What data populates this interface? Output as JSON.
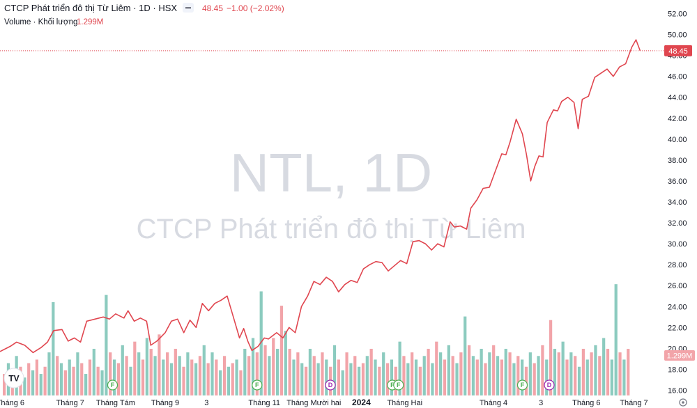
{
  "header": {
    "title": "CTCP Phát triển đô thị Từ Liêm · 1D · HSX",
    "price": "48.45",
    "change": "−1.00 (−2.02%)",
    "volume_label": "Volume · Khối lượng",
    "volume_value": "1.299M"
  },
  "watermark": {
    "symbol": "NTL, 1D",
    "name": "CTCP Phát triển đô thị Từ Liêm"
  },
  "last_price_label": "48.45",
  "last_volume_label": "1.299M",
  "logo_text": "TV",
  "colors": {
    "line": "#e0464f",
    "up_volume": "#8ccbbf",
    "down_volume": "#f2a4a9",
    "dividend": "#9c27b0",
    "financial": "#4caf50"
  },
  "chart_data": {
    "type": "line",
    "y_ticks": [
      "16.00",
      "18.00",
      "20.00",
      "22.00",
      "24.00",
      "26.00",
      "28.00",
      "30.00",
      "32.00",
      "34.00",
      "36.00",
      "38.00",
      "40.00",
      "42.00",
      "44.00",
      "46.00",
      "48.00",
      "50.00",
      "52.00"
    ],
    "ylim": [
      15.5,
      52.5
    ],
    "x_labels": [
      "Tháng 6",
      "Tháng 7",
      "Tháng Tám",
      "Tháng 9",
      "3",
      "Tháng 11",
      "Tháng Mười hai",
      "2024",
      "Tháng Hai",
      "Tháng 4",
      "3",
      "Tháng 6",
      "Tháng 7"
    ],
    "x_label_positions": [
      0.5,
      3.4,
      5.6,
      8.0,
      10.0,
      12.8,
      15.2,
      17.5,
      19.6,
      23.9,
      26.2,
      28.4,
      30.7
    ],
    "x_label_bold": [
      false,
      false,
      false,
      false,
      false,
      false,
      false,
      true,
      false,
      false,
      false,
      false,
      false
    ],
    "x_range": [
      0,
      32
    ],
    "price_points": [
      [
        0.0,
        19.7
      ],
      [
        0.5,
        20.2
      ],
      [
        0.8,
        20.6
      ],
      [
        1.2,
        20.3
      ],
      [
        1.6,
        19.6
      ],
      [
        2.0,
        20.1
      ],
      [
        2.3,
        20.6
      ],
      [
        2.6,
        21.7
      ],
      [
        3.0,
        21.8
      ],
      [
        3.3,
        20.7
      ],
      [
        3.6,
        21.0
      ],
      [
        3.9,
        20.6
      ],
      [
        4.2,
        22.6
      ],
      [
        4.6,
        22.8
      ],
      [
        5.0,
        23.0
      ],
      [
        5.3,
        22.8
      ],
      [
        5.6,
        23.3
      ],
      [
        6.0,
        22.9
      ],
      [
        6.2,
        23.6
      ],
      [
        6.5,
        22.6
      ],
      [
        6.8,
        22.9
      ],
      [
        7.1,
        22.6
      ],
      [
        7.3,
        20.3
      ],
      [
        7.6,
        20.7
      ],
      [
        8.0,
        21.5
      ],
      [
        8.3,
        22.6
      ],
      [
        8.6,
        22.8
      ],
      [
        8.9,
        21.5
      ],
      [
        9.2,
        22.7
      ],
      [
        9.5,
        22.0
      ],
      [
        9.8,
        24.3
      ],
      [
        10.1,
        23.6
      ],
      [
        10.4,
        24.3
      ],
      [
        10.7,
        24.6
      ],
      [
        11.0,
        25.0
      ],
      [
        11.3,
        23.0
      ],
      [
        11.6,
        21.0
      ],
      [
        11.8,
        21.9
      ],
      [
        12.0,
        20.7
      ],
      [
        12.2,
        19.8
      ],
      [
        12.5,
        20.2
      ],
      [
        12.8,
        21.0
      ],
      [
        13.0,
        20.9
      ],
      [
        13.4,
        21.5
      ],
      [
        13.7,
        21.0
      ],
      [
        14.0,
        22.0
      ],
      [
        14.3,
        21.5
      ],
      [
        14.6,
        24.0
      ],
      [
        14.9,
        25.0
      ],
      [
        15.2,
        26.4
      ],
      [
        15.5,
        26.1
      ],
      [
        15.8,
        26.8
      ],
      [
        16.1,
        26.4
      ],
      [
        16.4,
        25.4
      ],
      [
        16.7,
        26.1
      ],
      [
        17.0,
        26.5
      ],
      [
        17.3,
        26.3
      ],
      [
        17.6,
        27.6
      ],
      [
        17.9,
        28.0
      ],
      [
        18.2,
        28.3
      ],
      [
        18.5,
        28.2
      ],
      [
        18.8,
        27.4
      ],
      [
        19.1,
        27.9
      ],
      [
        19.4,
        28.4
      ],
      [
        19.7,
        28.1
      ],
      [
        20.0,
        30.2
      ],
      [
        20.3,
        30.3
      ],
      [
        20.6,
        30.0
      ],
      [
        20.9,
        29.4
      ],
      [
        21.2,
        30.0
      ],
      [
        21.5,
        29.7
      ],
      [
        21.8,
        32.1
      ],
      [
        22.0,
        31.6
      ],
      [
        22.3,
        31.7
      ],
      [
        22.6,
        31.4
      ],
      [
        22.8,
        33.4
      ],
      [
        23.1,
        34.2
      ],
      [
        23.4,
        35.3
      ],
      [
        23.7,
        35.4
      ],
      [
        24.0,
        37.0
      ],
      [
        24.3,
        38.6
      ],
      [
        24.5,
        38.5
      ],
      [
        24.7,
        39.7
      ],
      [
        25.0,
        41.9
      ],
      [
        25.3,
        40.5
      ],
      [
        25.5,
        38.5
      ],
      [
        25.7,
        36.0
      ],
      [
        25.9,
        37.4
      ],
      [
        26.1,
        38.4
      ],
      [
        26.3,
        38.3
      ],
      [
        26.5,
        41.6
      ],
      [
        26.8,
        42.8
      ],
      [
        27.0,
        42.7
      ],
      [
        27.2,
        43.6
      ],
      [
        27.5,
        44.0
      ],
      [
        27.8,
        43.5
      ],
      [
        28.0,
        41.0
      ],
      [
        28.2,
        43.8
      ],
      [
        28.5,
        44.1
      ],
      [
        28.8,
        45.9
      ],
      [
        29.1,
        46.3
      ],
      [
        29.4,
        46.7
      ],
      [
        29.7,
        46.0
      ],
      [
        30.0,
        46.9
      ],
      [
        30.3,
        47.2
      ],
      [
        30.6,
        48.8
      ],
      [
        30.8,
        49.5
      ],
      [
        31.0,
        48.45
      ]
    ],
    "volume_max_m": 3.2,
    "volume_bars_m": [
      [
        "d",
        0.6
      ],
      [
        "u",
        0.9
      ],
      [
        "d",
        0.7
      ],
      [
        "u",
        1.1
      ],
      [
        "d",
        0.8
      ],
      [
        "u",
        0.5
      ],
      [
        "d",
        0.9
      ],
      [
        "u",
        0.7
      ],
      [
        "d",
        1.0
      ],
      [
        "u",
        0.6
      ],
      [
        "d",
        0.8
      ],
      [
        "u",
        1.2
      ],
      [
        "u",
        2.6
      ],
      [
        "d",
        1.1
      ],
      [
        "u",
        0.9
      ],
      [
        "d",
        0.7
      ],
      [
        "u",
        1.0
      ],
      [
        "d",
        0.8
      ],
      [
        "u",
        1.2
      ],
      [
        "d",
        0.9
      ],
      [
        "u",
        0.6
      ],
      [
        "d",
        1.0
      ],
      [
        "u",
        1.3
      ],
      [
        "d",
        0.8
      ],
      [
        "u",
        0.7
      ],
      [
        "u",
        2.8
      ],
      [
        "d",
        1.2
      ],
      [
        "u",
        1.0
      ],
      [
        "d",
        0.9
      ],
      [
        "u",
        1.4
      ],
      [
        "d",
        1.1
      ],
      [
        "u",
        0.8
      ],
      [
        "d",
        1.5
      ],
      [
        "u",
        1.2
      ],
      [
        "d",
        1.0
      ],
      [
        "u",
        1.6
      ],
      [
        "d",
        1.3
      ],
      [
        "u",
        1.1
      ],
      [
        "d",
        1.7
      ],
      [
        "u",
        1.0
      ],
      [
        "d",
        1.2
      ],
      [
        "u",
        0.9
      ],
      [
        "d",
        1.3
      ],
      [
        "u",
        1.1
      ],
      [
        "d",
        0.8
      ],
      [
        "u",
        1.2
      ],
      [
        "d",
        1.0
      ],
      [
        "u",
        0.9
      ],
      [
        "d",
        1.1
      ],
      [
        "u",
        1.4
      ],
      [
        "d",
        0.9
      ],
      [
        "u",
        1.2
      ],
      [
        "d",
        1.0
      ],
      [
        "u",
        0.7
      ],
      [
        "d",
        1.1
      ],
      [
        "u",
        0.8
      ],
      [
        "d",
        0.9
      ],
      [
        "u",
        1.0
      ],
      [
        "d",
        0.7
      ],
      [
        "u",
        1.3
      ],
      [
        "d",
        1.1
      ],
      [
        "u",
        1.6
      ],
      [
        "d",
        1.2
      ],
      [
        "u",
        2.9
      ],
      [
        "d",
        1.4
      ],
      [
        "u",
        1.1
      ],
      [
        "d",
        1.6
      ],
      [
        "u",
        1.3
      ],
      [
        "d",
        2.5
      ],
      [
        "u",
        1.8
      ],
      [
        "d",
        1.3
      ],
      [
        "u",
        1.0
      ],
      [
        "d",
        1.2
      ],
      [
        "u",
        0.9
      ],
      [
        "d",
        0.8
      ],
      [
        "u",
        1.3
      ],
      [
        "d",
        1.1
      ],
      [
        "u",
        0.9
      ],
      [
        "d",
        1.2
      ],
      [
        "u",
        1.0
      ],
      [
        "d",
        0.8
      ],
      [
        "u",
        1.4
      ],
      [
        "d",
        1.0
      ],
      [
        "u",
        0.7
      ],
      [
        "d",
        1.2
      ],
      [
        "u",
        0.9
      ],
      [
        "d",
        1.1
      ],
      [
        "u",
        0.8
      ],
      [
        "d",
        0.9
      ],
      [
        "u",
        1.1
      ],
      [
        "d",
        1.3
      ],
      [
        "u",
        1.0
      ],
      [
        "d",
        0.8
      ],
      [
        "u",
        1.2
      ],
      [
        "d",
        0.9
      ],
      [
        "u",
        1.0
      ],
      [
        "d",
        0.8
      ],
      [
        "u",
        1.5
      ],
      [
        "d",
        1.1
      ],
      [
        "u",
        0.9
      ],
      [
        "d",
        1.2
      ],
      [
        "u",
        1.0
      ],
      [
        "d",
        0.8
      ],
      [
        "u",
        1.1
      ],
      [
        "d",
        1.3
      ],
      [
        "u",
        0.9
      ],
      [
        "d",
        1.5
      ],
      [
        "u",
        1.2
      ],
      [
        "d",
        1.0
      ],
      [
        "u",
        1.4
      ],
      [
        "d",
        1.1
      ],
      [
        "u",
        0.9
      ],
      [
        "d",
        1.2
      ],
      [
        "u",
        2.2
      ],
      [
        "d",
        1.4
      ],
      [
        "u",
        1.1
      ],
      [
        "d",
        1.0
      ],
      [
        "u",
        1.3
      ],
      [
        "d",
        0.9
      ],
      [
        "u",
        1.2
      ],
      [
        "d",
        1.4
      ],
      [
        "u",
        1.1
      ],
      [
        "d",
        1.0
      ],
      [
        "u",
        1.3
      ],
      [
        "d",
        1.2
      ],
      [
        "u",
        0.9
      ],
      [
        "d",
        1.1
      ],
      [
        "u",
        1.0
      ],
      [
        "d",
        0.8
      ],
      [
        "u",
        1.2
      ],
      [
        "d",
        0.9
      ],
      [
        "u",
        1.1
      ],
      [
        "d",
        1.4
      ],
      [
        "u",
        1.0
      ],
      [
        "d",
        2.1
      ],
      [
        "u",
        1.3
      ],
      [
        "d",
        1.2
      ],
      [
        "u",
        1.5
      ],
      [
        "d",
        1.0
      ],
      [
        "u",
        1.2
      ],
      [
        "d",
        1.1
      ],
      [
        "u",
        0.8
      ],
      [
        "d",
        1.3
      ],
      [
        "u",
        1.0
      ],
      [
        "d",
        1.2
      ],
      [
        "u",
        1.4
      ],
      [
        "d",
        1.1
      ],
      [
        "u",
        1.6
      ],
      [
        "d",
        1.3
      ],
      [
        "u",
        1.0
      ],
      [
        "u",
        3.1
      ],
      [
        "d",
        1.2
      ],
      [
        "u",
        1.0
      ],
      [
        "d",
        1.299
      ]
    ],
    "event_badges": [
      {
        "type": "F",
        "x": 5.45
      },
      {
        "type": "F",
        "x": 12.45
      },
      {
        "type": "D",
        "x": 16.0
      },
      {
        "type": "F",
        "x": 19.0
      },
      {
        "type": "F",
        "x": 19.3
      },
      {
        "type": "F",
        "x": 25.3
      },
      {
        "type": "D",
        "x": 26.6
      }
    ]
  }
}
